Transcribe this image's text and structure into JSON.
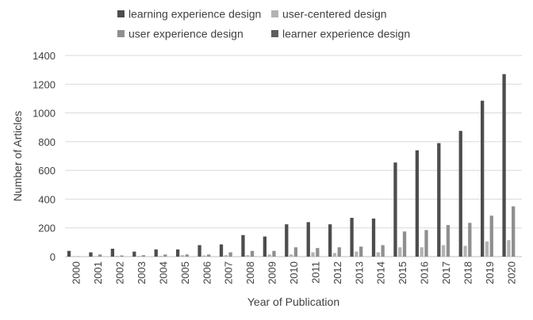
{
  "chart_data": {
    "type": "bar",
    "xlabel": "Year of Publication",
    "ylabel": "Number of Articles",
    "ylim": [
      0,
      1400
    ],
    "yticks": [
      0,
      200,
      400,
      600,
      800,
      1000,
      1200,
      1400
    ],
    "grid": "horizontal",
    "legend_position": "top",
    "categories": [
      "2000",
      "2001",
      "2002",
      "2003",
      "2004",
      "2005",
      "2006",
      "2007",
      "2008",
      "2009",
      "2010",
      "2011",
      "2012",
      "2013",
      "2014",
      "2015",
      "2016",
      "2017",
      "2018",
      "2019",
      "2020"
    ],
    "series": [
      {
        "name": "learning experience design",
        "color": "#4d4d4d",
        "values": [
          40,
          30,
          55,
          35,
          50,
          50,
          80,
          85,
          150,
          140,
          225,
          240,
          225,
          270,
          265,
          655,
          740,
          790,
          875,
          1085,
          1270
        ]
      },
      {
        "name": "user-centered design",
        "color": "#b3b3b3",
        "values": [
          3,
          3,
          5,
          5,
          5,
          10,
          8,
          10,
          10,
          15,
          15,
          30,
          25,
          35,
          30,
          65,
          65,
          80,
          75,
          105,
          115
        ]
      },
      {
        "name": "user experience design",
        "color": "#8f8f8f",
        "values": [
          2,
          15,
          8,
          10,
          15,
          15,
          15,
          30,
          40,
          40,
          65,
          60,
          65,
          70,
          80,
          175,
          185,
          220,
          235,
          285,
          350
        ]
      },
      {
        "name": "learner experience design",
        "color": "#5e5e5e",
        "values": [
          0,
          0,
          0,
          0,
          0,
          0,
          0,
          0,
          0,
          0,
          0,
          0,
          0,
          0,
          0,
          0,
          0,
          0,
          0,
          0,
          0
        ]
      }
    ]
  }
}
